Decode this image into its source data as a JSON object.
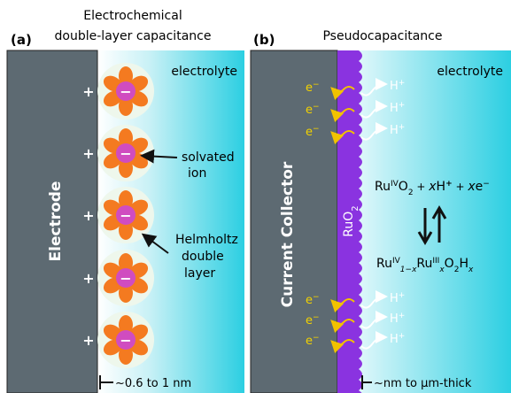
{
  "panels": [
    {
      "label": "(a)",
      "title": [
        "Electrochemical",
        "double-layer capacitance"
      ],
      "electrode": "Electrode",
      "electrolyte": "electrolyte",
      "charges": {
        "plus": "+",
        "minus": "−"
      },
      "annotations": [
        {
          "lines": [
            "solvated",
            "ion"
          ]
        },
        {
          "lines": [
            "Helmholtz",
            "double",
            "layer"
          ]
        }
      ],
      "scale": "~0.6 to 1 nm"
    },
    {
      "label": "(b)",
      "title": "Pseudocapacitance",
      "collector": "Current Collector",
      "film": {
        "base": "RuO",
        "sub": "2"
      },
      "electrolyte": "electrolyte",
      "electron": {
        "base": "e",
        "sup": "−"
      },
      "proton": {
        "base": "H",
        "sup": "+"
      },
      "reaction": {
        "reactant": [
          "Ru",
          "IV",
          "O",
          "2",
          " + ",
          "x",
          "H",
          "+",
          " + ",
          "x",
          "e",
          "−"
        ],
        "product": [
          "Ru",
          "IV",
          "1−x",
          "Ru",
          "III",
          "x",
          "O",
          "2",
          "H",
          "x"
        ]
      },
      "scale": "~nm to μm-thick"
    }
  ]
}
